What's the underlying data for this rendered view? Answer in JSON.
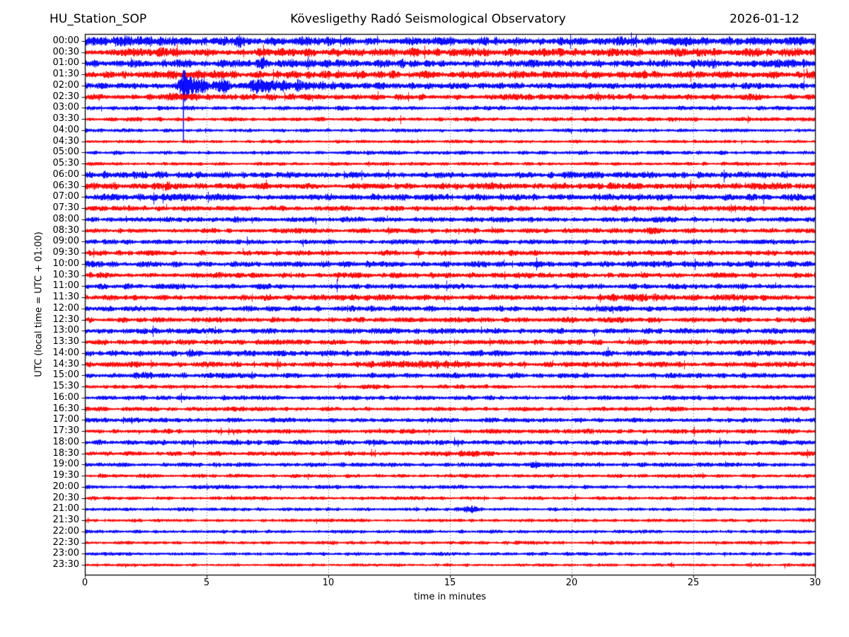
{
  "chart_data": {
    "type": "line",
    "subtype": "helicorder-dayplot",
    "station": "HU_Station_SOP",
    "title": "Kövesligethy Radó Seismological Observatory",
    "date": "2026-01-12",
    "xlabel": "time in minutes",
    "ylabel": "UTC (local time = UTC + 01:00)",
    "xlim": [
      0,
      30
    ],
    "x_ticks": [
      0,
      5,
      10,
      15,
      20,
      25,
      30
    ],
    "grid_minutes": [
      5,
      10,
      15,
      20,
      25
    ],
    "minutes_per_line": 30,
    "legend": "none",
    "colors": {
      "even_trace": "#0000ff",
      "odd_trace": "#ff0000",
      "frame": "#000000",
      "grid": "#555555"
    },
    "noise_seed": 20260112,
    "main_event": {
      "trace": "02:00",
      "minute": 4.05,
      "description": "large spike with decaying coda crossing several rows"
    },
    "traces": [
      {
        "label": "00:00",
        "color": "#0000ff",
        "amp": 5.0,
        "events": [
          {
            "t": 6.6,
            "w": 0.45,
            "a": 4.5
          },
          {
            "t": 2.0,
            "w": 0.6,
            "a": 1.5
          }
        ]
      },
      {
        "label": "00:30",
        "color": "#ff0000",
        "amp": 4.5,
        "events": [
          {
            "t": 3.2,
            "w": 0.5,
            "a": 1.5
          },
          {
            "t": 13.0,
            "w": 0.8,
            "a": 1.2
          }
        ]
      },
      {
        "label": "01:00",
        "color": "#0000ff",
        "amp": 4.5,
        "events": [
          {
            "t": 7.3,
            "w": 0.3,
            "a": 2.0
          },
          {
            "t": 8.5,
            "w": 0.6,
            "a": 2.5
          },
          {
            "t": 25.6,
            "w": 0.4,
            "a": 2.0
          }
        ]
      },
      {
        "label": "01:30",
        "color": "#ff0000",
        "amp": 4.2,
        "events": [
          {
            "t": 4.3,
            "w": 0.8,
            "a": 3.0
          },
          {
            "t": 10.8,
            "w": 0.5,
            "a": 1.5
          }
        ]
      },
      {
        "label": "02:00",
        "color": "#0000ff",
        "amp": 3.2,
        "spike": {
          "t": 4.05,
          "up": 22,
          "down": 81
        },
        "events": [
          {
            "t": 4.15,
            "w": 0.22,
            "a": 20
          },
          {
            "t": 4.6,
            "w": 0.7,
            "a": 9
          },
          {
            "t": 5.65,
            "w": 0.3,
            "a": 8
          },
          {
            "t": 7.0,
            "w": 0.55,
            "a": 10
          },
          {
            "t": 8.3,
            "w": 1.6,
            "a": 4
          },
          {
            "t": 11.0,
            "w": 3.0,
            "a": 1.5
          }
        ]
      },
      {
        "label": "02:30",
        "color": "#ff0000",
        "amp": 3.4,
        "events": [
          {
            "t": 4.2,
            "w": 1.0,
            "a": 1.5
          }
        ]
      },
      {
        "label": "03:00",
        "color": "#0000ff",
        "amp": 2.3,
        "events": []
      },
      {
        "label": "03:30",
        "color": "#ff0000",
        "amp": 2.3,
        "events": [
          {
            "t": 7.8,
            "w": 0.4,
            "a": 1.2
          }
        ]
      },
      {
        "label": "04:00",
        "color": "#0000ff",
        "amp": 1.9,
        "events": []
      },
      {
        "label": "04:30",
        "color": "#ff0000",
        "amp": 1.7,
        "events": []
      },
      {
        "label": "05:00",
        "color": "#0000ff",
        "amp": 2.1,
        "events": []
      },
      {
        "label": "05:30",
        "color": "#ff0000",
        "amp": 1.9,
        "events": []
      },
      {
        "label": "06:00",
        "color": "#0000ff",
        "amp": 3.6,
        "events": [
          {
            "t": 1.5,
            "w": 1.2,
            "a": 1.0
          }
        ]
      },
      {
        "label": "06:30",
        "color": "#ff0000",
        "amp": 3.6,
        "events": [
          {
            "t": 3.35,
            "w": 0.12,
            "a": 9.0
          },
          {
            "t": 1.0,
            "w": 1.5,
            "a": 1.0
          }
        ]
      },
      {
        "label": "07:00",
        "color": "#0000ff",
        "amp": 3.6,
        "events": [
          {
            "t": 3.3,
            "w": 1.5,
            "a": 1.0
          }
        ]
      },
      {
        "label": "07:30",
        "color": "#ff0000",
        "amp": 2.9,
        "events": [
          {
            "t": 21.8,
            "w": 0.5,
            "a": 2.0
          }
        ]
      },
      {
        "label": "08:00",
        "color": "#0000ff",
        "amp": 2.9,
        "events": []
      },
      {
        "label": "08:30",
        "color": "#ff0000",
        "amp": 2.7,
        "events": [
          {
            "t": 23.2,
            "w": 0.5,
            "a": 1.5
          }
        ]
      },
      {
        "label": "09:00",
        "color": "#0000ff",
        "amp": 2.7,
        "events": []
      },
      {
        "label": "09:30",
        "color": "#ff0000",
        "amp": 2.9,
        "events": []
      },
      {
        "label": "10:00",
        "color": "#0000ff",
        "amp": 3.3,
        "events": []
      },
      {
        "label": "10:30",
        "color": "#ff0000",
        "amp": 3.1,
        "events": [
          {
            "t": 0.8,
            "w": 0.5,
            "a": 1.5
          }
        ]
      },
      {
        "label": "11:00",
        "color": "#0000ff",
        "amp": 2.9,
        "events": []
      },
      {
        "label": "11:30",
        "color": "#ff0000",
        "amp": 3.3,
        "events": [
          {
            "t": 22.5,
            "w": 1.0,
            "a": 2.0
          },
          {
            "t": 25.0,
            "w": 0.5,
            "a": 1.5
          }
        ]
      },
      {
        "label": "12:00",
        "color": "#0000ff",
        "amp": 3.1,
        "events": []
      },
      {
        "label": "12:30",
        "color": "#ff0000",
        "amp": 2.9,
        "events": []
      },
      {
        "label": "13:00",
        "color": "#0000ff",
        "amp": 3.1,
        "events": [
          {
            "t": 15.2,
            "w": 0.8,
            "a": 1.5
          }
        ]
      },
      {
        "label": "13:30",
        "color": "#ff0000",
        "amp": 2.9,
        "events": []
      },
      {
        "label": "14:00",
        "color": "#0000ff",
        "amp": 3.1,
        "events": [
          {
            "t": 4.3,
            "w": 0.1,
            "a": 4.0
          },
          {
            "t": 19.8,
            "w": 0.3,
            "a": 2.0
          }
        ]
      },
      {
        "label": "14:30",
        "color": "#ff0000",
        "amp": 3.0,
        "events": [
          {
            "t": 13.5,
            "w": 1.6,
            "a": 3.0
          },
          {
            "t": 15.3,
            "w": 0.5,
            "a": 2.0
          }
        ]
      },
      {
        "label": "15:00",
        "color": "#0000ff",
        "amp": 3.0,
        "events": [
          {
            "t": 2.5,
            "w": 0.8,
            "a": 1.5
          }
        ]
      },
      {
        "label": "15:30",
        "color": "#ff0000",
        "amp": 2.3,
        "events": []
      },
      {
        "label": "16:00",
        "color": "#0000ff",
        "amp": 2.5,
        "events": []
      },
      {
        "label": "16:30",
        "color": "#ff0000",
        "amp": 2.3,
        "events": []
      },
      {
        "label": "17:00",
        "color": "#0000ff",
        "amp": 2.5,
        "events": []
      },
      {
        "label": "17:30",
        "color": "#ff0000",
        "amp": 2.5,
        "events": []
      },
      {
        "label": "18:00",
        "color": "#0000ff",
        "amp": 2.7,
        "events": []
      },
      {
        "label": "18:30",
        "color": "#ff0000",
        "amp": 2.5,
        "events": [
          {
            "t": 15.5,
            "w": 0.8,
            "a": 1.5
          }
        ]
      },
      {
        "label": "19:00",
        "color": "#0000ff",
        "amp": 2.5,
        "events": [
          {
            "t": 18.5,
            "w": 0.4,
            "a": 1.8
          }
        ]
      },
      {
        "label": "19:30",
        "color": "#ff0000",
        "amp": 2.1,
        "events": []
      },
      {
        "label": "20:00",
        "color": "#0000ff",
        "amp": 2.1,
        "events": []
      },
      {
        "label": "20:30",
        "color": "#ff0000",
        "amp": 1.9,
        "events": []
      },
      {
        "label": "21:00",
        "color": "#0000ff",
        "amp": 1.9,
        "events": [
          {
            "t": 15.8,
            "w": 0.35,
            "a": 4.5
          }
        ]
      },
      {
        "label": "21:30",
        "color": "#ff0000",
        "amp": 1.7,
        "events": []
      },
      {
        "label": "22:00",
        "color": "#0000ff",
        "amp": 1.9,
        "events": []
      },
      {
        "label": "22:30",
        "color": "#ff0000",
        "amp": 1.9,
        "events": []
      },
      {
        "label": "23:00",
        "color": "#0000ff",
        "amp": 1.9,
        "events": []
      },
      {
        "label": "23:30",
        "color": "#ff0000",
        "amp": 1.7,
        "events": []
      }
    ]
  }
}
